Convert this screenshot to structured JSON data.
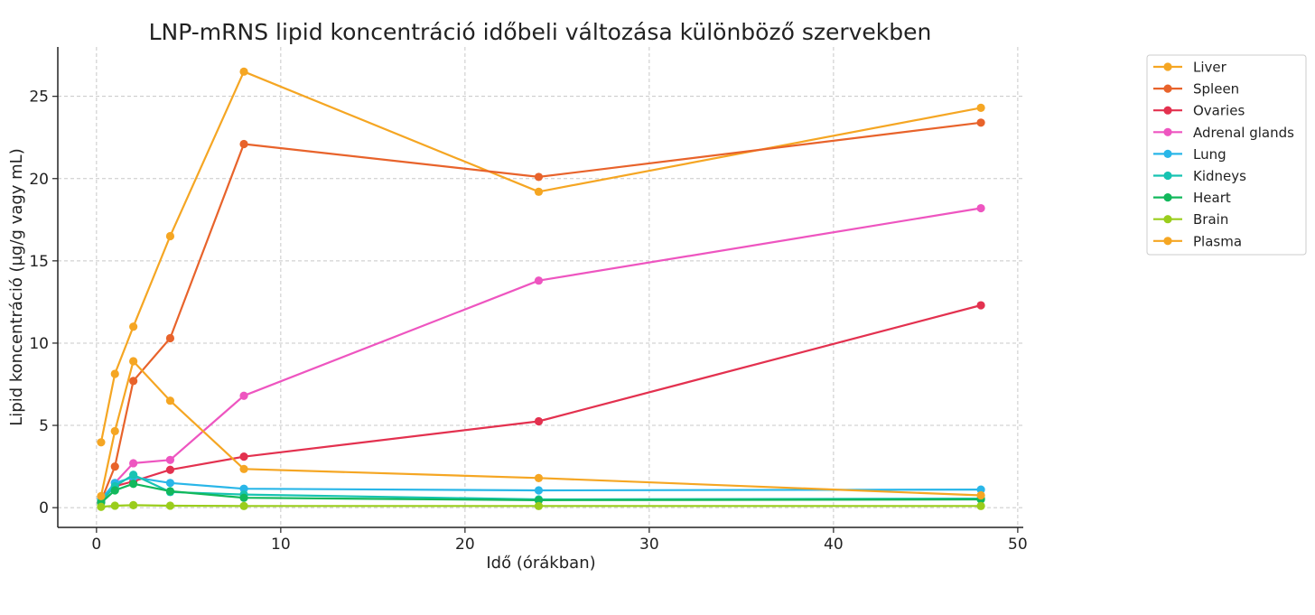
{
  "chart_data": {
    "type": "line",
    "title": "LNP-mRNS lipid koncentráció időbeli változása különböző szervekben",
    "xlabel": "Idő (órákban)",
    "ylabel": "Lipid koncentráció (µg/g vagy mL)",
    "xlim": [
      -2.1,
      50.3
    ],
    "ylim": [
      -1.2,
      28.0
    ],
    "xticks": [
      0,
      10,
      20,
      30,
      40,
      50
    ],
    "yticks": [
      0,
      5,
      10,
      15,
      20,
      25
    ],
    "grid": true,
    "legend_position": "outside-top-right",
    "x": [
      0.25,
      1,
      2,
      4,
      8,
      24,
      48
    ],
    "series": [
      {
        "name": "Liver",
        "color": "#F5A623",
        "values": [
          3.97,
          8.13,
          11.0,
          16.5,
          26.5,
          19.2,
          24.3
        ]
      },
      {
        "name": "Spleen",
        "color": "#E8632B",
        "values": [
          0.4,
          2.5,
          7.7,
          10.3,
          22.1,
          20.1,
          23.4
        ]
      },
      {
        "name": "Ovaries",
        "color": "#E3314F",
        "values": [
          0.4,
          1.3,
          1.6,
          2.3,
          3.1,
          5.25,
          12.3
        ]
      },
      {
        "name": "Adrenal glands",
        "color": "#EE55C0",
        "values": [
          0.35,
          1.5,
          2.7,
          2.9,
          6.8,
          13.8,
          18.2
        ]
      },
      {
        "name": "Lung",
        "color": "#29B6E8",
        "values": [
          0.5,
          1.5,
          1.85,
          1.5,
          1.15,
          1.05,
          1.1
        ]
      },
      {
        "name": "Kidneys",
        "color": "#17C3B2",
        "values": [
          0.4,
          1.3,
          2.0,
          0.95,
          0.8,
          0.5,
          0.55
        ]
      },
      {
        "name": "Heart",
        "color": "#12B85C",
        "values": [
          0.3,
          1.05,
          1.45,
          1.0,
          0.6,
          0.45,
          0.5
        ]
      },
      {
        "name": "Brain",
        "color": "#9ACD1C",
        "values": [
          0.05,
          0.12,
          0.15,
          0.12,
          0.1,
          0.1,
          0.1
        ]
      },
      {
        "name": "Plasma",
        "color": "#F5A623",
        "values": [
          0.7,
          4.65,
          8.9,
          6.5,
          2.35,
          1.8,
          0.75
        ]
      }
    ]
  }
}
